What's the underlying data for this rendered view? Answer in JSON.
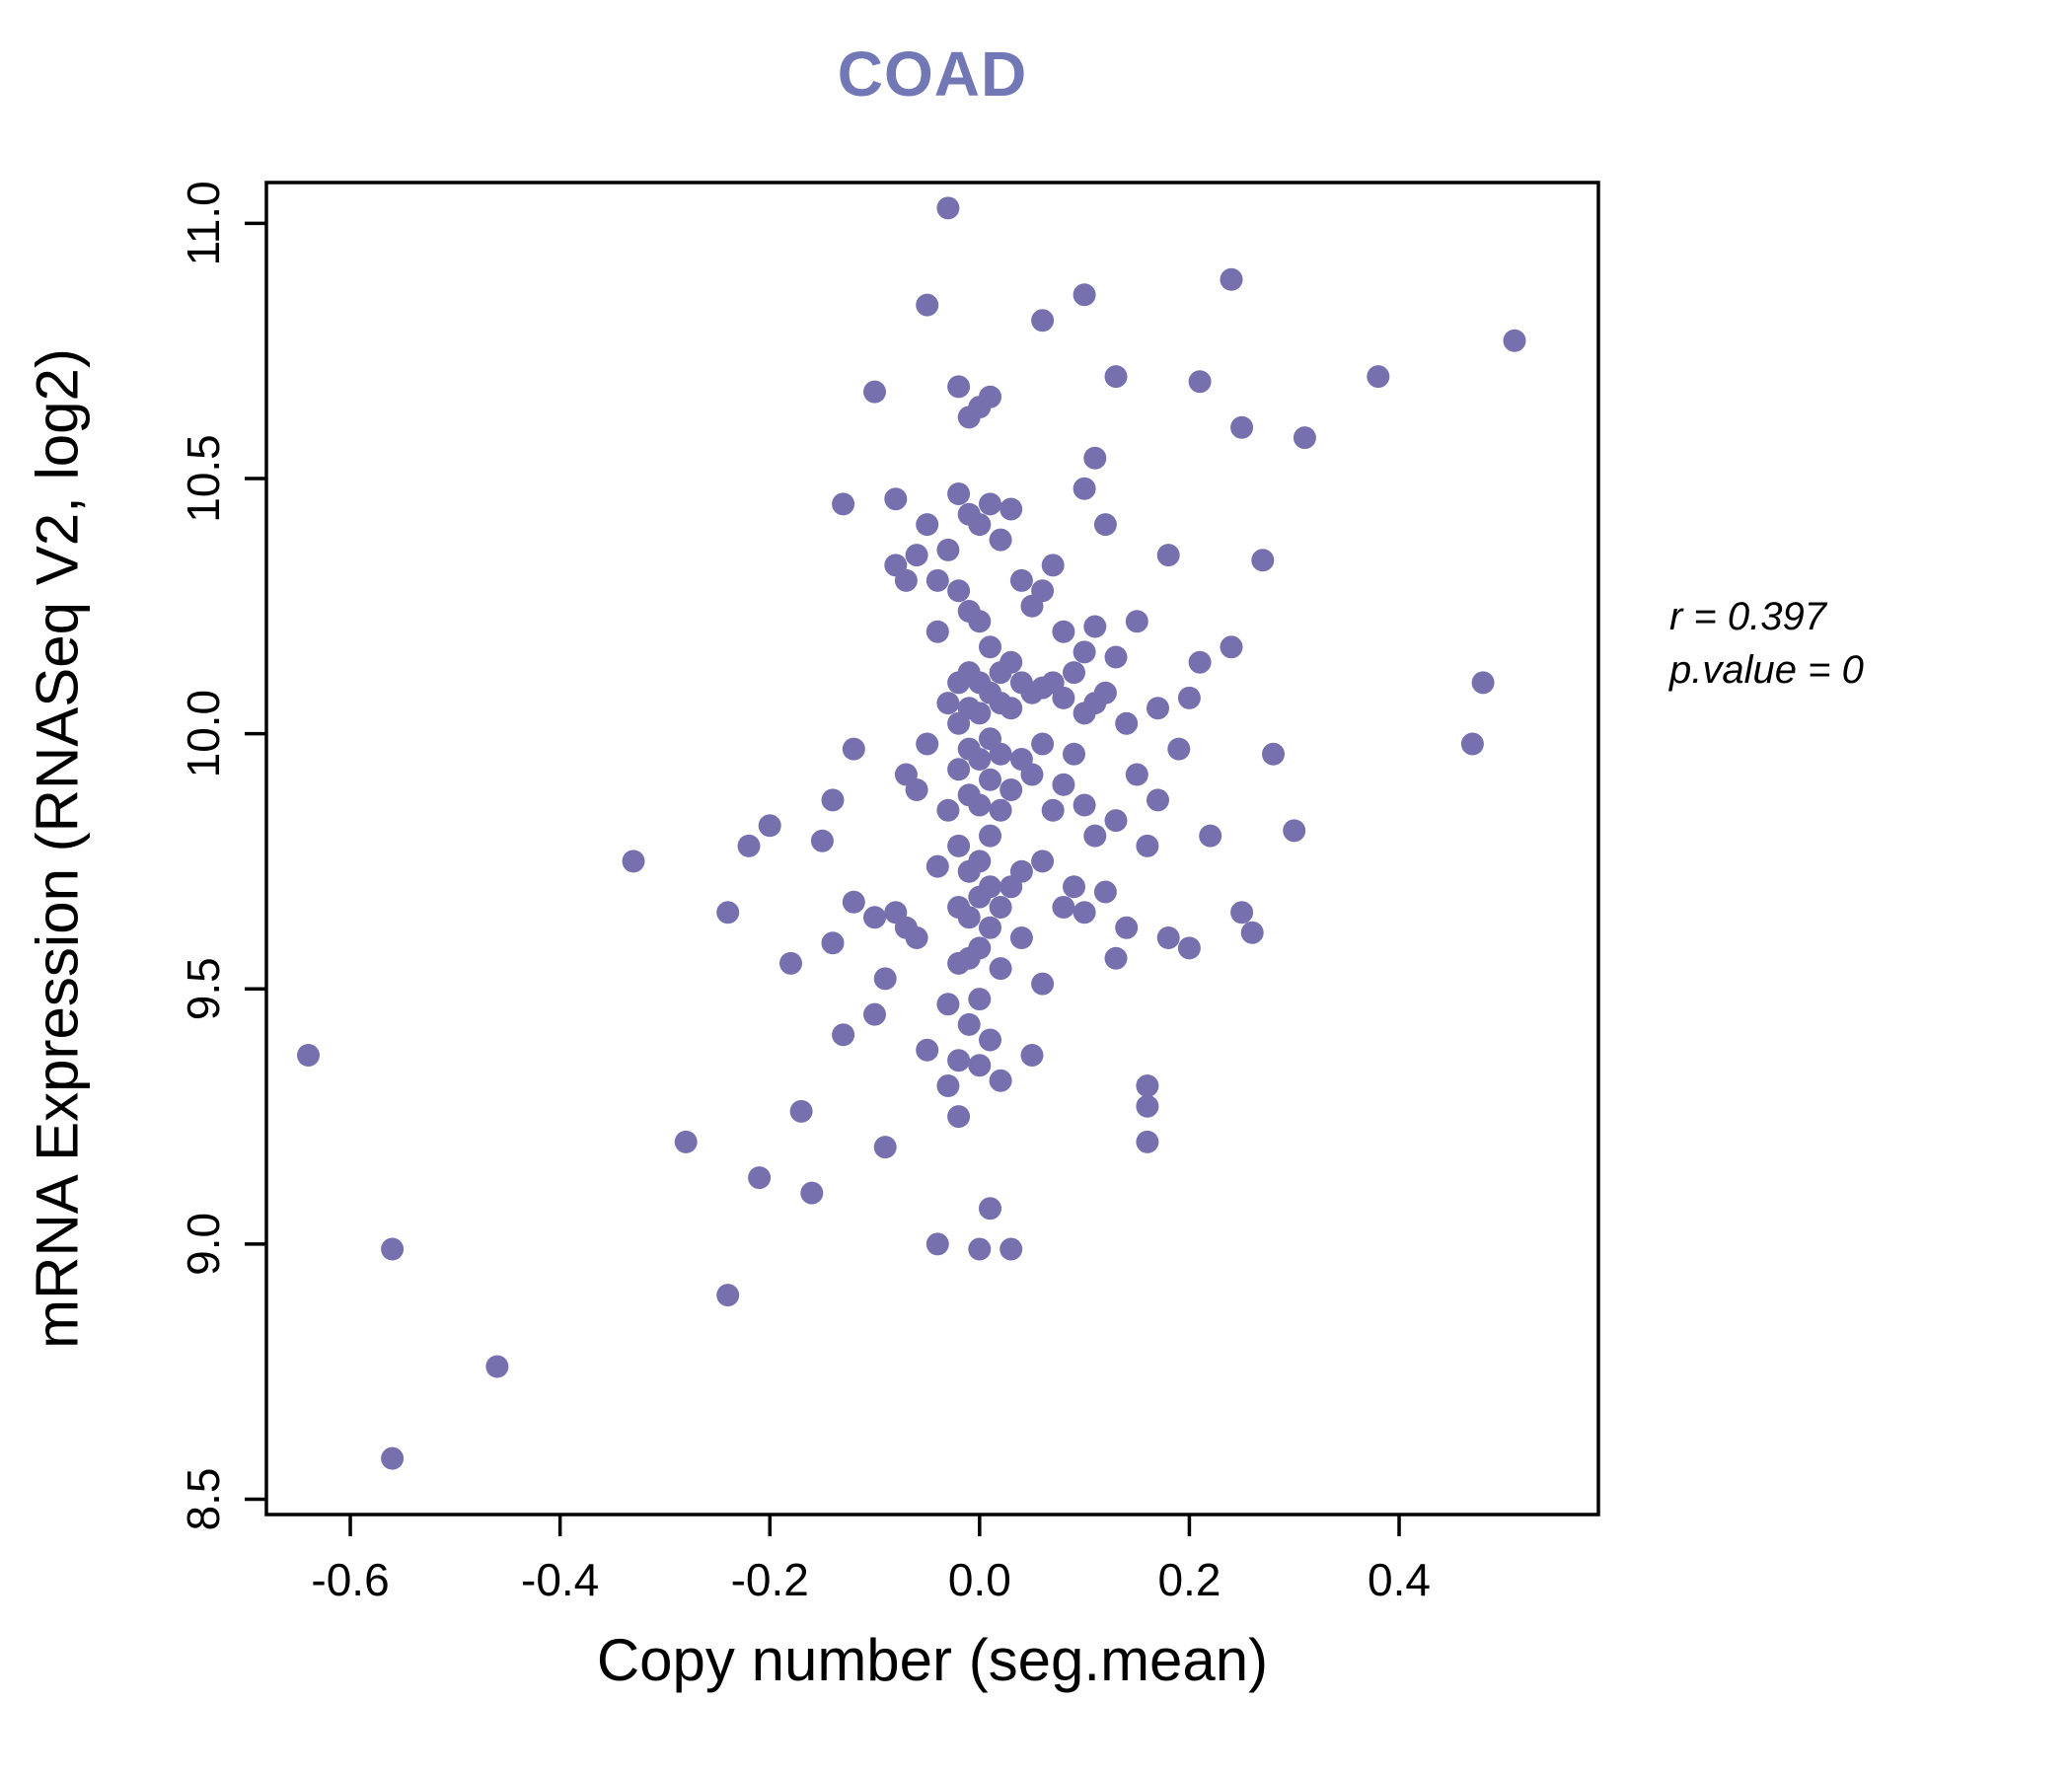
{
  "colors": {
    "title": "#7277b5",
    "points": "#7671ae",
    "axis": "#000000"
  },
  "annotation": {
    "line1": "r = 0.397",
    "line2": "p.value = 0"
  },
  "chart_data": {
    "type": "scatter",
    "title": "COAD",
    "xlabel": "Copy number (seg.mean)",
    "ylabel": "mRNA Expression (RNASeq V2, log2)",
    "xlim": [
      -0.68,
      0.59
    ],
    "ylim": [
      8.47,
      11.08
    ],
    "x_ticks": [
      -0.6,
      -0.4,
      -0.2,
      0.0,
      0.2,
      0.4
    ],
    "y_ticks": [
      8.5,
      9.0,
      9.5,
      10.0,
      10.5,
      11.0
    ],
    "grid": false,
    "legend": false,
    "annotations": [
      "r = 0.397",
      "p.value = 0"
    ],
    "points": [
      [
        -0.64,
        9.37
      ],
      [
        -0.56,
        8.99
      ],
      [
        -0.56,
        8.58
      ],
      [
        -0.46,
        8.76
      ],
      [
        -0.33,
        9.75
      ],
      [
        -0.28,
        9.2
      ],
      [
        -0.24,
        8.9
      ],
      [
        -0.24,
        9.65
      ],
      [
        -0.22,
        9.78
      ],
      [
        -0.21,
        9.13
      ],
      [
        -0.2,
        9.82
      ],
      [
        -0.18,
        9.55
      ],
      [
        -0.17,
        9.26
      ],
      [
        -0.16,
        9.1
      ],
      [
        -0.15,
        9.79
      ],
      [
        -0.14,
        9.87
      ],
      [
        -0.14,
        9.59
      ],
      [
        -0.13,
        10.45
      ],
      [
        -0.13,
        9.41
      ],
      [
        -0.12,
        9.97
      ],
      [
        -0.12,
        9.67
      ],
      [
        -0.1,
        10.67
      ],
      [
        -0.1,
        9.45
      ],
      [
        -0.1,
        9.64
      ],
      [
        -0.09,
        9.52
      ],
      [
        -0.09,
        9.19
      ],
      [
        -0.08,
        10.46
      ],
      [
        -0.08,
        9.65
      ],
      [
        -0.08,
        10.33
      ],
      [
        -0.07,
        9.62
      ],
      [
        -0.07,
        10.3
      ],
      [
        -0.07,
        9.92
      ],
      [
        -0.06,
        10.35
      ],
      [
        -0.06,
        9.89
      ],
      [
        -0.06,
        9.6
      ],
      [
        -0.05,
        10.84
      ],
      [
        -0.05,
        10.41
      ],
      [
        -0.05,
        9.98
      ],
      [
        -0.05,
        9.38
      ],
      [
        -0.04,
        10.3
      ],
      [
        -0.04,
        10.2
      ],
      [
        -0.04,
        9.74
      ],
      [
        -0.04,
        9.0
      ],
      [
        -0.03,
        11.03
      ],
      [
        -0.03,
        10.36
      ],
      [
        -0.03,
        10.06
      ],
      [
        -0.03,
        9.85
      ],
      [
        -0.03,
        9.47
      ],
      [
        -0.03,
        9.31
      ],
      [
        -0.02,
        10.68
      ],
      [
        -0.02,
        10.47
      ],
      [
        -0.02,
        10.28
      ],
      [
        -0.02,
        10.1
      ],
      [
        -0.02,
        10.02
      ],
      [
        -0.02,
        9.93
      ],
      [
        -0.02,
        9.78
      ],
      [
        -0.02,
        9.66
      ],
      [
        -0.02,
        9.55
      ],
      [
        -0.02,
        9.36
      ],
      [
        -0.02,
        9.25
      ],
      [
        -0.01,
        10.62
      ],
      [
        -0.01,
        10.43
      ],
      [
        -0.01,
        10.24
      ],
      [
        -0.01,
        10.12
      ],
      [
        -0.01,
        10.05
      ],
      [
        -0.01,
        9.97
      ],
      [
        -0.01,
        9.88
      ],
      [
        -0.01,
        9.73
      ],
      [
        -0.01,
        9.64
      ],
      [
        -0.01,
        9.56
      ],
      [
        -0.01,
        9.43
      ],
      [
        0.0,
        10.64
      ],
      [
        0.0,
        10.41
      ],
      [
        0.0,
        10.22
      ],
      [
        0.0,
        10.1
      ],
      [
        0.0,
        10.04
      ],
      [
        0.0,
        9.95
      ],
      [
        0.0,
        9.86
      ],
      [
        0.0,
        9.75
      ],
      [
        0.0,
        9.68
      ],
      [
        0.0,
        9.58
      ],
      [
        0.0,
        9.48
      ],
      [
        0.0,
        9.35
      ],
      [
        0.0,
        8.99
      ],
      [
        0.01,
        10.66
      ],
      [
        0.01,
        10.45
      ],
      [
        0.01,
        10.17
      ],
      [
        0.01,
        10.08
      ],
      [
        0.01,
        9.99
      ],
      [
        0.01,
        9.91
      ],
      [
        0.01,
        9.8
      ],
      [
        0.01,
        9.7
      ],
      [
        0.01,
        9.62
      ],
      [
        0.01,
        9.4
      ],
      [
        0.01,
        9.07
      ],
      [
        0.02,
        10.38
      ],
      [
        0.02,
        10.12
      ],
      [
        0.02,
        10.06
      ],
      [
        0.02,
        9.96
      ],
      [
        0.02,
        9.85
      ],
      [
        0.02,
        9.66
      ],
      [
        0.02,
        9.54
      ],
      [
        0.02,
        9.32
      ],
      [
        0.03,
        10.44
      ],
      [
        0.03,
        10.14
      ],
      [
        0.03,
        10.05
      ],
      [
        0.03,
        9.89
      ],
      [
        0.03,
        9.7
      ],
      [
        0.03,
        8.99
      ],
      [
        0.04,
        10.3
      ],
      [
        0.04,
        10.1
      ],
      [
        0.04,
        9.95
      ],
      [
        0.04,
        9.73
      ],
      [
        0.04,
        9.6
      ],
      [
        0.05,
        10.25
      ],
      [
        0.05,
        10.08
      ],
      [
        0.05,
        9.92
      ],
      [
        0.05,
        9.37
      ],
      [
        0.06,
        10.81
      ],
      [
        0.06,
        10.28
      ],
      [
        0.06,
        10.09
      ],
      [
        0.06,
        9.98
      ],
      [
        0.06,
        9.75
      ],
      [
        0.06,
        9.51
      ],
      [
        0.07,
        10.33
      ],
      [
        0.07,
        10.1
      ],
      [
        0.07,
        9.85
      ],
      [
        0.08,
        10.2
      ],
      [
        0.08,
        10.07
      ],
      [
        0.08,
        9.9
      ],
      [
        0.08,
        9.66
      ],
      [
        0.09,
        10.12
      ],
      [
        0.09,
        9.96
      ],
      [
        0.09,
        9.7
      ],
      [
        0.1,
        10.86
      ],
      [
        0.1,
        10.48
      ],
      [
        0.1,
        10.16
      ],
      [
        0.1,
        10.04
      ],
      [
        0.1,
        9.86
      ],
      [
        0.1,
        9.65
      ],
      [
        0.11,
        10.54
      ],
      [
        0.11,
        10.21
      ],
      [
        0.11,
        10.06
      ],
      [
        0.11,
        9.8
      ],
      [
        0.12,
        10.41
      ],
      [
        0.12,
        10.08
      ],
      [
        0.12,
        9.69
      ],
      [
        0.13,
        10.7
      ],
      [
        0.13,
        10.15
      ],
      [
        0.13,
        9.83
      ],
      [
        0.13,
        9.56
      ],
      [
        0.14,
        10.02
      ],
      [
        0.14,
        9.62
      ],
      [
        0.15,
        10.22
      ],
      [
        0.15,
        9.92
      ],
      [
        0.16,
        9.31
      ],
      [
        0.16,
        9.27
      ],
      [
        0.16,
        9.2
      ],
      [
        0.16,
        9.78
      ],
      [
        0.17,
        10.05
      ],
      [
        0.17,
        9.87
      ],
      [
        0.18,
        9.6
      ],
      [
        0.18,
        10.35
      ],
      [
        0.19,
        9.97
      ],
      [
        0.2,
        10.07
      ],
      [
        0.2,
        9.58
      ],
      [
        0.21,
        10.69
      ],
      [
        0.21,
        10.14
      ],
      [
        0.22,
        9.8
      ],
      [
        0.24,
        10.89
      ],
      [
        0.24,
        10.17
      ],
      [
        0.25,
        9.65
      ],
      [
        0.25,
        10.6
      ],
      [
        0.26,
        9.61
      ],
      [
        0.27,
        10.34
      ],
      [
        0.28,
        9.96
      ],
      [
        0.3,
        9.81
      ],
      [
        0.31,
        10.58
      ],
      [
        0.38,
        10.7
      ],
      [
        0.47,
        9.98
      ],
      [
        0.48,
        10.1
      ],
      [
        0.51,
        10.77
      ]
    ]
  }
}
